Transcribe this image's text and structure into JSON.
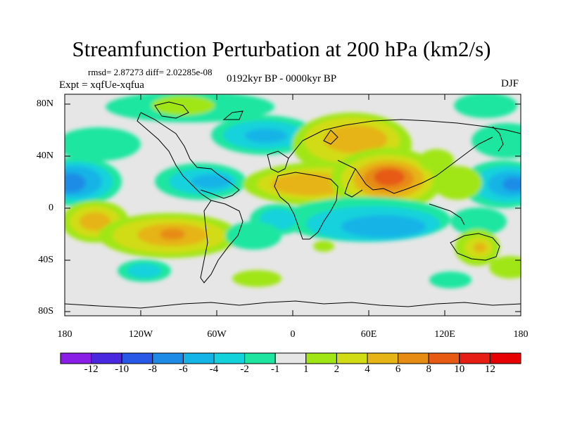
{
  "title": "Streamfunction Perturbation at 200 hPa (km2/s)",
  "stats_line": "rmsd= 2.87273 diff= 2.02285e-08",
  "experiment": "Expt = xqfUe-xqfua",
  "period": "0192kyr BP - 0000kyr BP",
  "season": "DJF",
  "colors": {
    "ocean_land_bg": "#e6e6e6",
    "frame": "#000000"
  },
  "map": {
    "y_axis_labels": [
      "80N",
      "40N",
      "0",
      "40S",
      "80S"
    ],
    "x_axis_labels": [
      "180",
      "120W",
      "60W",
      "0",
      "60E",
      "120E",
      "180"
    ]
  },
  "colorbar": {
    "labels": [
      "-12",
      "-10",
      "-8",
      "-6",
      "-4",
      "-2",
      "-1",
      "1",
      "2",
      "4",
      "6",
      "8",
      "10",
      "12"
    ],
    "colors": [
      "#8a1ee6",
      "#4a28e0",
      "#2859e6",
      "#1e8ce6",
      "#14b4e6",
      "#14d2dc",
      "#1ee6a0",
      "#e6e6e6",
      "#a0e614",
      "#d2dc14",
      "#e6b414",
      "#e68c14",
      "#e65a14",
      "#e61e14",
      "#e60000"
    ]
  }
}
